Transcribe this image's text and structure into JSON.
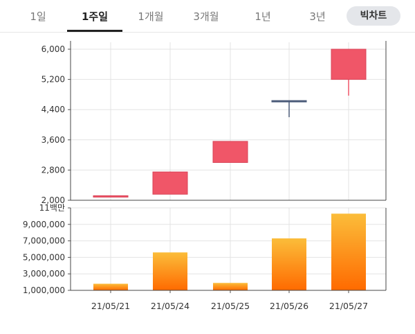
{
  "tabs": [
    {
      "label": "1일",
      "active": false
    },
    {
      "label": "1주일",
      "active": true
    },
    {
      "label": "1개월",
      "active": false
    },
    {
      "label": "3개월",
      "active": false
    },
    {
      "label": "1년",
      "active": false
    },
    {
      "label": "3년",
      "active": false
    }
  ],
  "chart_toggle_label": "빅차트",
  "colors": {
    "up": "#f05668",
    "down": "#4a5a78",
    "volume_top": "#fbbd3a",
    "volume_bottom": "#ff6a00"
  },
  "chart_data": [
    {
      "type": "candlestick",
      "categories": [
        "21/05/21",
        "21/05/24",
        "21/05/25",
        "21/05/26",
        "21/05/27"
      ],
      "ohlc": [
        {
          "open": 2110,
          "high": 2130,
          "low": 2100,
          "close": 2120
        },
        {
          "open": 2160,
          "high": 2760,
          "low": 2160,
          "close": 2750
        },
        {
          "open": 3000,
          "high": 3560,
          "low": 3000,
          "close": 3560
        },
        {
          "open": 4640,
          "high": 4640,
          "low": 4200,
          "close": 4610
        },
        {
          "open": 5200,
          "high": 6000,
          "low": 4770,
          "close": 6000
        }
      ],
      "ylim": [
        2000,
        6000
      ],
      "yticks": [
        2000,
        2800,
        3600,
        4400,
        5200,
        6000
      ],
      "ytick_labels": [
        "2,000",
        "2,800",
        "3,600",
        "4,400",
        "5,200",
        "6,000"
      ],
      "grid": true
    },
    {
      "type": "bar",
      "categories": [
        "21/05/21",
        "21/05/24",
        "21/05/25",
        "21/05/26",
        "21/05/27"
      ],
      "values": [
        1800000,
        5600000,
        1900000,
        7300000,
        10300000
      ],
      "ylim": [
        1000000,
        11000000
      ],
      "yticks": [
        1000000,
        3000000,
        5000000,
        7000000,
        9000000
      ],
      "ytick_labels": [
        "1,000,000",
        "3,000,000",
        "5,000,000",
        "7,000,000",
        "9,000,000"
      ],
      "top_label": "11백만",
      "grid": true
    }
  ]
}
